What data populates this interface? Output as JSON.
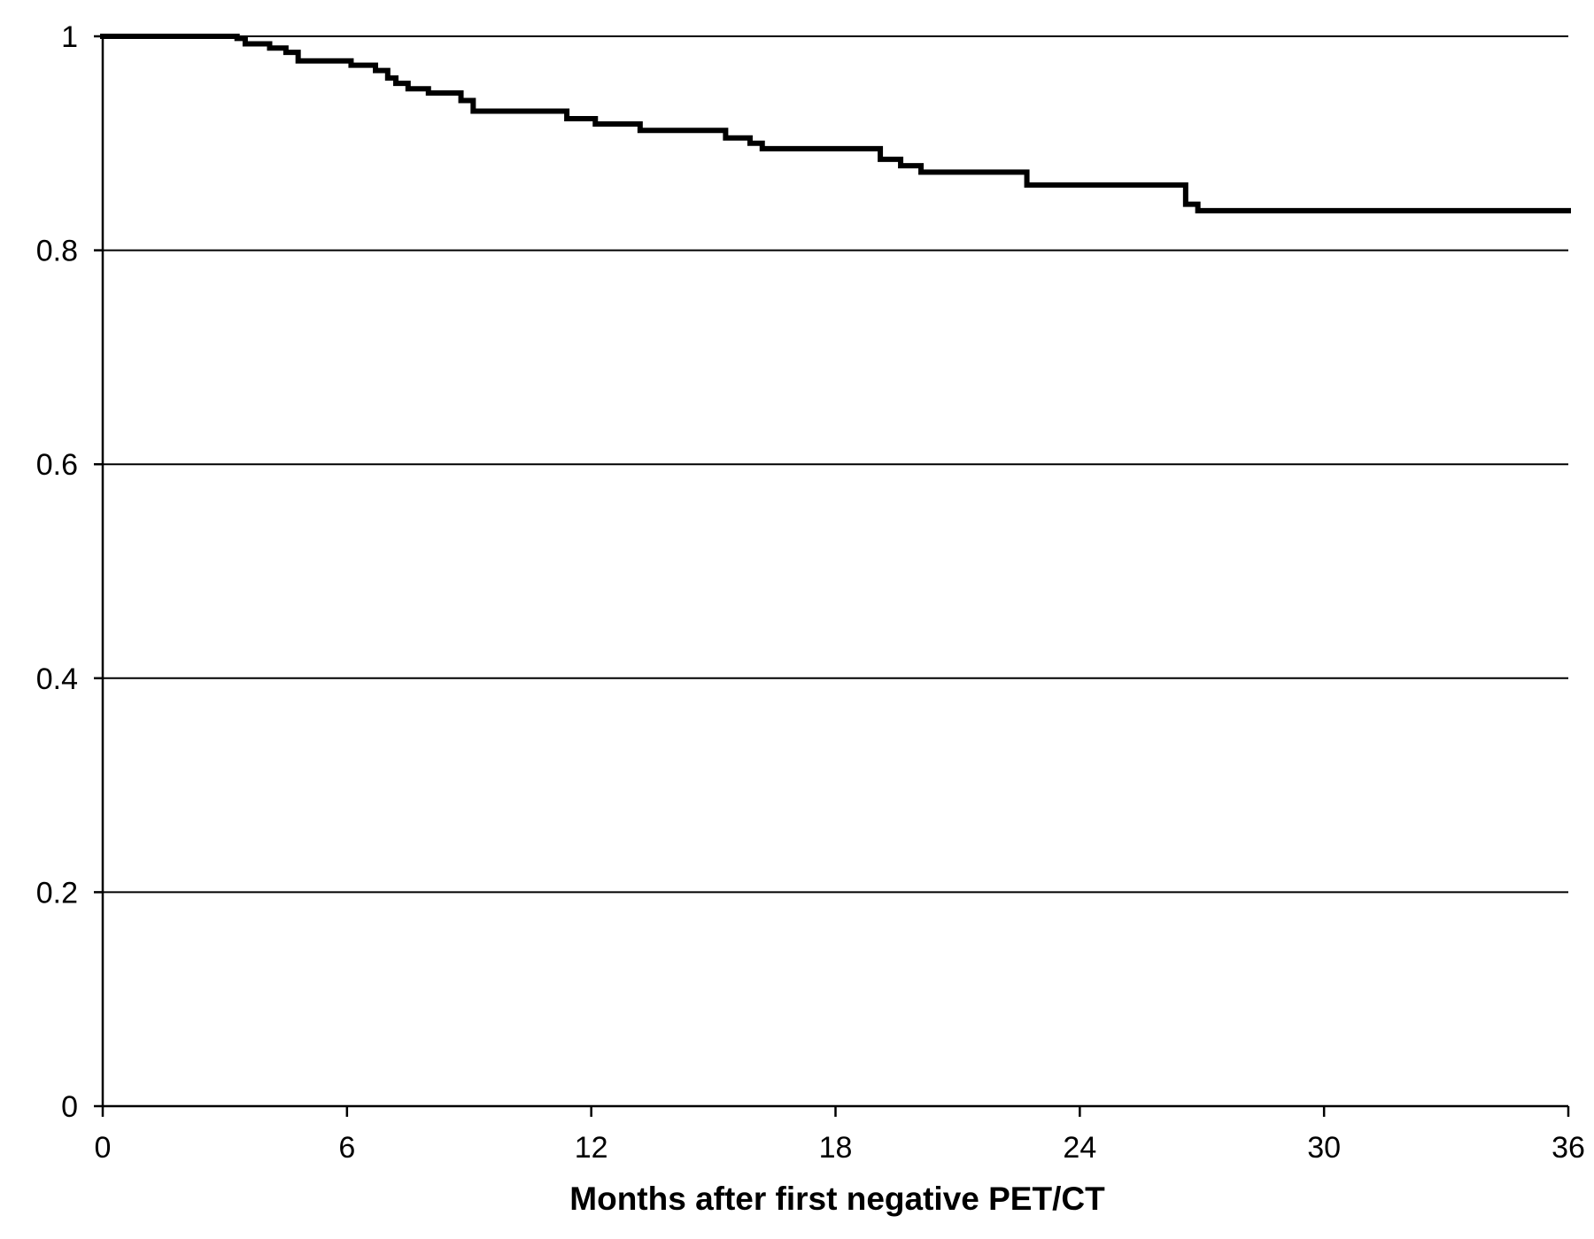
{
  "chart_data": {
    "type": "line",
    "step": true,
    "xlabel": "Months after first negative PET/CT",
    "ylabel": "",
    "title": "",
    "xlim": [
      0,
      36
    ],
    "ylim": [
      0,
      1
    ],
    "x_ticks": [
      0,
      6,
      12,
      18,
      24,
      30,
      36
    ],
    "x_tick_labels": [
      "0",
      "6",
      "12",
      "18",
      "24",
      "30",
      "36"
    ],
    "y_ticks": [
      0,
      0.2,
      0.4,
      0.6,
      0.8,
      1
    ],
    "y_tick_labels": [
      "0",
      "0.2",
      "0.4",
      "0.6",
      "0.8",
      "1"
    ],
    "horizontal_grid": true,
    "legend": "none",
    "line_color": "#000000",
    "series": [
      {
        "x": [
          0,
          3.3,
          3.5,
          4.1,
          4.5,
          4.8,
          6.1,
          6.7,
          7.0,
          7.2,
          7.5,
          8.0,
          8.8,
          9.1,
          11.4,
          12.1,
          13.2,
          15.3,
          15.9,
          16.2,
          19.1,
          19.6,
          20.1,
          22.7,
          26.6,
          26.9,
          36.0
        ],
        "y": [
          1.0,
          0.998,
          0.993,
          0.989,
          0.985,
          0.977,
          0.973,
          0.968,
          0.961,
          0.956,
          0.951,
          0.947,
          0.94,
          0.93,
          0.923,
          0.918,
          0.912,
          0.905,
          0.9,
          0.895,
          0.885,
          0.879,
          0.873,
          0.861,
          0.843,
          0.837,
          0.837
        ]
      }
    ]
  }
}
